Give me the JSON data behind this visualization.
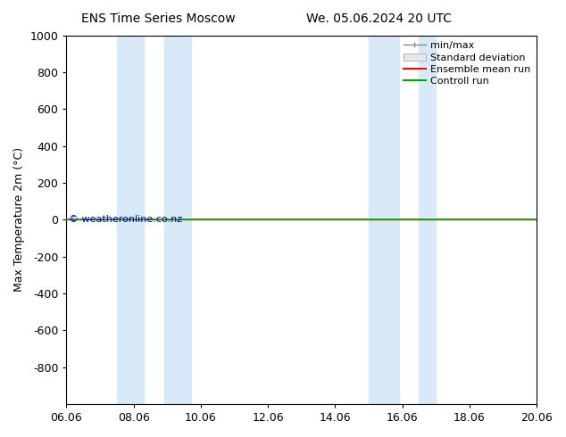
{
  "title_left": "ENS Time Series Moscow",
  "title_right": "We. 05.06.2024 20 UTC",
  "ylabel": "Max Temperature 2m (°C)",
  "ylim_top": -1000,
  "ylim_bottom": 1000,
  "y_ticks": [
    -800,
    -600,
    -400,
    -200,
    0,
    200,
    400,
    600,
    800,
    1000
  ],
  "x_tick_labels": [
    "06.06",
    "08.06",
    "10.06",
    "12.06",
    "14.06",
    "16.06",
    "18.06",
    "20.06"
  ],
  "x_tick_positions": [
    0,
    2,
    4,
    6,
    8,
    10,
    12,
    14
  ],
  "blue_bands": [
    [
      1.5,
      2.3
    ],
    [
      2.9,
      3.7
    ],
    [
      9.0,
      9.9
    ],
    [
      10.5,
      11.0
    ]
  ],
  "blue_band_color": "#d8eaf8",
  "green_line_y": 0,
  "red_line_y": 0,
  "background_color": "#ffffff",
  "watermark_text": "© weatheronline.co.nz",
  "watermark_color": "#0000cc",
  "legend_labels": [
    "min/max",
    "Standard deviation",
    "Ensemble mean run",
    "Controll run"
  ],
  "legend_colors_line": [
    "#888888",
    "#cccccc",
    "#ff0000",
    "#00aa00"
  ],
  "font_size": 9,
  "title_fontsize": 10
}
